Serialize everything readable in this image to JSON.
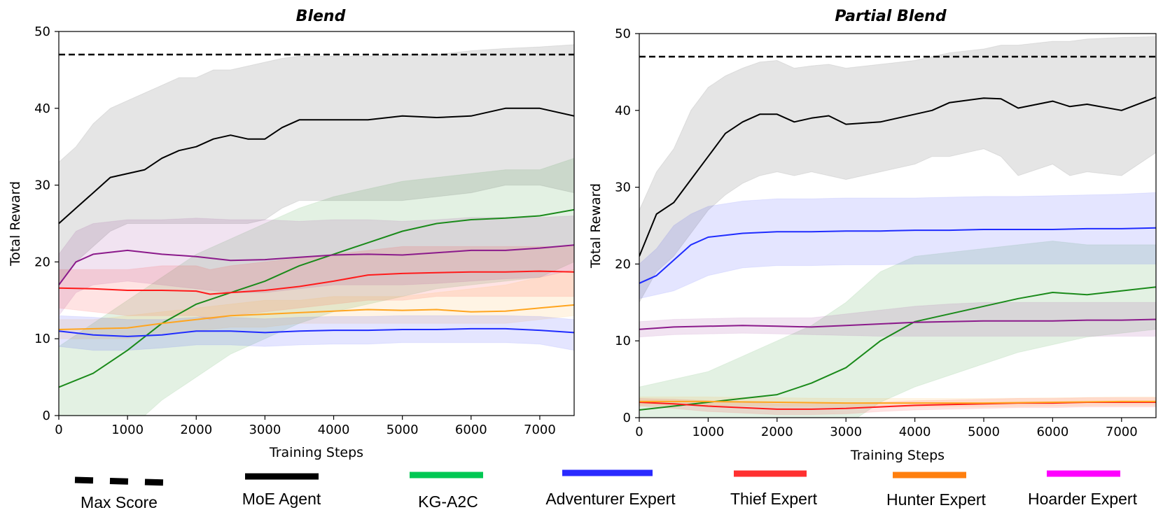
{
  "colors": {
    "max_score": "#000000",
    "moe_agent": "#000000",
    "kg_a2c": "#1a8a1a",
    "adventurer": "#1f2cff",
    "thief": "#ff1a1a",
    "hunter": "#ffa51f",
    "hoarder": "#8b1a8b"
  },
  "legend": {
    "items": [
      {
        "label": "Max Score",
        "color": "#000000",
        "style": "dashed"
      },
      {
        "label": "MoE Agent",
        "color": "#000000",
        "style": "solid"
      },
      {
        "label": "KG-A2C",
        "color": "#00c853",
        "style": "solid"
      },
      {
        "label": "Adventurer Expert",
        "color": "#2a2aff",
        "style": "solid"
      },
      {
        "label": "Thief Expert",
        "color": "#ff3030",
        "style": "solid"
      },
      {
        "label": "Hunter Expert",
        "color": "#ff7f0e",
        "style": "solid"
      },
      {
        "label": "Hoarder Expert",
        "color": "#ff00ff",
        "style": "solid"
      }
    ]
  },
  "chart_data": [
    {
      "type": "line",
      "title": "Blend",
      "xlabel": "Training Steps",
      "ylabel": "Total Reward",
      "xlim": [
        0,
        7500
      ],
      "ylim": [
        0,
        50
      ],
      "xticks": [
        0,
        1000,
        2000,
        3000,
        4000,
        5000,
        6000,
        7000
      ],
      "yticks": [
        0,
        10,
        20,
        30,
        40,
        50
      ],
      "max_score": 47,
      "series": [
        {
          "name": "KG-A2C",
          "key": "kg_a2c",
          "x": [
            0,
            500,
            1000,
            1500,
            2000,
            2500,
            3000,
            3500,
            4000,
            4500,
            5000,
            5500,
            6000,
            6500,
            7000,
            7500
          ],
          "mean": [
            3.7,
            5.5,
            8.5,
            12,
            14.5,
            16,
            17.5,
            19.5,
            21,
            22.5,
            24,
            25,
            25.5,
            25.7,
            26,
            26.8
          ],
          "lower": [
            -2,
            -3,
            -2,
            2,
            5,
            8,
            10,
            12,
            13.5,
            14.5,
            15.5,
            16.5,
            17,
            17.5,
            18,
            20
          ],
          "upper": [
            9,
            12,
            15,
            18,
            21,
            23,
            25,
            27,
            28.5,
            29.5,
            30.5,
            31,
            31.5,
            32,
            32,
            33.5
          ]
        },
        {
          "name": "Hoarder Expert",
          "key": "hoarder",
          "x": [
            0,
            250,
            500,
            1000,
            1500,
            2000,
            2500,
            3000,
            3500,
            4000,
            4500,
            5000,
            5500,
            6000,
            6500,
            7000,
            7500
          ],
          "mean": [
            17,
            20,
            21,
            21.5,
            21,
            20.7,
            20.2,
            20.3,
            20.6,
            20.9,
            21,
            20.9,
            21.2,
            21.5,
            21.5,
            21.8,
            22.2
          ],
          "lower": [
            13,
            16,
            17,
            17.5,
            17,
            16.5,
            16,
            16,
            16.5,
            17,
            17,
            17,
            17.2,
            17.5,
            17.8,
            18,
            19
          ],
          "upper": [
            21,
            24,
            25,
            25.5,
            25.5,
            25.7,
            25.5,
            25.5,
            25.3,
            25.5,
            25.5,
            25.3,
            25.5,
            25.8,
            25.8,
            25.8,
            26
          ]
        },
        {
          "name": "Thief Expert",
          "key": "thief",
          "x": [
            0,
            500,
            1000,
            1500,
            2000,
            2200,
            2500,
            3000,
            3500,
            4000,
            4500,
            5000,
            5500,
            6000,
            6500,
            7000,
            7500
          ],
          "mean": [
            16.6,
            16.5,
            16.3,
            16.3,
            16.2,
            15.8,
            16,
            16.3,
            16.8,
            17.5,
            18.3,
            18.5,
            18.6,
            18.7,
            18.7,
            18.8,
            18.7
          ],
          "lower": [
            14,
            13.5,
            13,
            13,
            13,
            12.5,
            13,
            13.5,
            14,
            14.5,
            15,
            15,
            15.5,
            15.5,
            15.5,
            15.5,
            15.5
          ],
          "upper": [
            19,
            19,
            19,
            19.5,
            19.5,
            19,
            19.5,
            20,
            20.5,
            21,
            21.5,
            22,
            22,
            22,
            22,
            22,
            22
          ]
        },
        {
          "name": "Hunter Expert",
          "key": "hunter",
          "x": [
            0,
            500,
            1000,
            1500,
            2000,
            2500,
            3000,
            3500,
            4000,
            4500,
            5000,
            5500,
            6000,
            6500,
            7000,
            7500
          ],
          "mean": [
            11.2,
            11.3,
            11.4,
            12,
            12.5,
            13,
            13.2,
            13.4,
            13.6,
            13.8,
            13.7,
            13.8,
            13.5,
            13.6,
            14,
            14.4
          ],
          "lower": [
            10,
            10,
            10,
            10.5,
            11,
            11.5,
            11.5,
            12,
            12,
            12,
            12,
            12,
            12,
            12,
            12.5,
            13
          ],
          "upper": [
            12.5,
            12.5,
            13,
            13.5,
            14,
            14.5,
            15,
            15,
            15.5,
            15.5,
            15.5,
            16,
            16.5,
            17,
            18,
            19
          ]
        },
        {
          "name": "Adventurer Expert",
          "key": "adventurer",
          "x": [
            0,
            500,
            1000,
            1500,
            2000,
            2500,
            3000,
            3500,
            4000,
            4500,
            5000,
            5500,
            6000,
            6500,
            7000,
            7500
          ],
          "mean": [
            11,
            10.5,
            10.3,
            10.5,
            11,
            11,
            10.8,
            11,
            11.1,
            11.1,
            11.2,
            11.2,
            11.3,
            11.3,
            11.1,
            10.8
          ],
          "lower": [
            9,
            8.5,
            8.5,
            8.8,
            9.2,
            9.2,
            9,
            9.2,
            9.3,
            9.3,
            9.5,
            9.5,
            9.5,
            9.5,
            9.3,
            8.5
          ],
          "upper": [
            13,
            12.8,
            12.5,
            12.5,
            12.8,
            12.8,
            12.6,
            12.8,
            12.9,
            12.9,
            13,
            13,
            13,
            13,
            12.9,
            12.5
          ]
        },
        {
          "name": "MoE Agent",
          "key": "moe_agent",
          "x": [
            0,
            250,
            500,
            750,
            1000,
            1250,
            1500,
            1750,
            2000,
            2250,
            2500,
            2750,
            3000,
            3250,
            3500,
            3750,
            4000,
            4500,
            5000,
            5500,
            6000,
            6500,
            7000,
            7500
          ],
          "mean": [
            25,
            27,
            29,
            31,
            31.5,
            32,
            33.5,
            34.5,
            35,
            36,
            36.5,
            36,
            36,
            37.5,
            38.5,
            38.5,
            38.5,
            38.5,
            39,
            38.8,
            39,
            40,
            40,
            39
          ],
          "lower": [
            17,
            20,
            22,
            24,
            25,
            25,
            25,
            25,
            25,
            25,
            25,
            25,
            25.5,
            27,
            28,
            28,
            28,
            28,
            28,
            28.5,
            29,
            30,
            30,
            29
          ],
          "upper": [
            33,
            35,
            38,
            40,
            41,
            42,
            43,
            44,
            44,
            45,
            45,
            45.5,
            46,
            46.5,
            46.8,
            46.8,
            46.8,
            46.8,
            47,
            47,
            47.5,
            47.8,
            48,
            48.3
          ]
        }
      ]
    },
    {
      "type": "line",
      "title": "Partial Blend",
      "xlabel": "Training Steps",
      "ylabel": "Total Reward",
      "xlim": [
        0,
        7500
      ],
      "ylim": [
        0,
        50
      ],
      "xticks": [
        0,
        1000,
        2000,
        3000,
        4000,
        5000,
        6000,
        7000
      ],
      "yticks": [
        0,
        10,
        20,
        30,
        40,
        50
      ],
      "max_score": 47,
      "series": [
        {
          "name": "KG-A2C",
          "key": "kg_a2c",
          "x": [
            0,
            500,
            1000,
            1500,
            2000,
            2500,
            3000,
            3500,
            4000,
            4500,
            5000,
            5500,
            6000,
            6500,
            7000,
            7500
          ],
          "mean": [
            1,
            1.5,
            2,
            2.5,
            3,
            4.5,
            6.5,
            10,
            12.5,
            13.5,
            14.5,
            15.5,
            16.3,
            16,
            16.5,
            17
          ],
          "lower": [
            -2,
            -2,
            -1.5,
            -1,
            -1,
            -1,
            -1,
            2,
            4,
            5.5,
            7,
            8.5,
            9.5,
            10.5,
            11,
            11.5
          ],
          "upper": [
            4,
            5,
            6,
            8,
            10,
            12,
            15,
            19,
            21,
            21.5,
            22,
            22.5,
            23,
            22.5,
            22.5,
            22.5
          ]
        },
        {
          "name": "Hoarder Expert",
          "key": "hoarder",
          "x": [
            0,
            500,
            1000,
            1500,
            2000,
            2500,
            3000,
            3500,
            4000,
            4500,
            5000,
            5500,
            6000,
            6500,
            7000,
            7500
          ],
          "mean": [
            11.5,
            11.8,
            11.9,
            12,
            11.9,
            11.8,
            12,
            12.2,
            12.4,
            12.5,
            12.6,
            12.6,
            12.6,
            12.7,
            12.7,
            12.8
          ],
          "lower": [
            10.5,
            10.8,
            10.9,
            11,
            10.9,
            10.8,
            10.7,
            10.6,
            10.6,
            10.6,
            10.6,
            10.6,
            10.6,
            10.6,
            10.6,
            10.6
          ],
          "upper": [
            12.5,
            12.8,
            12.9,
            13,
            13,
            13,
            13.5,
            14,
            14.5,
            14.8,
            15,
            15,
            15,
            15,
            15,
            15
          ]
        },
        {
          "name": "Adventurer Expert",
          "key": "adventurer",
          "x": [
            0,
            250,
            500,
            750,
            1000,
            1500,
            2000,
            2500,
            3000,
            3500,
            4000,
            4500,
            5000,
            5500,
            6000,
            6500,
            7000,
            7500
          ],
          "mean": [
            17.5,
            18.5,
            20.5,
            22.5,
            23.5,
            24,
            24.2,
            24.2,
            24.3,
            24.3,
            24.4,
            24.4,
            24.5,
            24.5,
            24.5,
            24.6,
            24.6,
            24.7
          ],
          "lower": [
            15.5,
            16,
            16.5,
            17.5,
            18.5,
            19.5,
            19.8,
            19.8,
            19.9,
            19.9,
            20,
            20,
            20,
            20,
            20,
            20,
            20,
            20
          ],
          "upper": [
            20,
            22,
            25,
            26.5,
            27.5,
            28.2,
            28.5,
            28.5,
            28.6,
            28.6,
            28.6,
            28.7,
            28.8,
            28.8,
            28.9,
            29,
            29.1,
            29.3
          ]
        },
        {
          "name": "Thief Expert",
          "key": "thief",
          "x": [
            0,
            500,
            1000,
            1500,
            2000,
            2500,
            3000,
            3500,
            4000,
            4500,
            5000,
            5500,
            6000,
            6500,
            7000,
            7500
          ],
          "mean": [
            2,
            1.8,
            1.5,
            1.3,
            1.1,
            1.1,
            1.2,
            1.4,
            1.6,
            1.7,
            1.8,
            1.9,
            1.9,
            2,
            2,
            2
          ],
          "lower": [
            1.5,
            1.2,
            0.8,
            0.6,
            0.4,
            0.4,
            0.5,
            0.8,
            1,
            1.1,
            1.2,
            1.3,
            1.3,
            1.4,
            1.4,
            1.4
          ],
          "upper": [
            2.5,
            2.4,
            2.2,
            2,
            1.8,
            1.8,
            1.9,
            2,
            2.2,
            2.3,
            2.4,
            2.5,
            2.5,
            2.6,
            2.6,
            2.6
          ]
        },
        {
          "name": "Hunter Expert",
          "key": "hunter",
          "x": [
            0,
            1000,
            2000,
            3000,
            4000,
            5000,
            6000,
            7000,
            7500
          ],
          "mean": [
            2.1,
            2.1,
            2,
            1.9,
            1.9,
            1.9,
            2,
            2.1,
            2.1
          ],
          "lower": [
            1.6,
            1.6,
            1.5,
            1.4,
            1.4,
            1.4,
            1.5,
            1.6,
            1.6
          ],
          "upper": [
            2.7,
            2.7,
            2.6,
            2.5,
            2.5,
            2.5,
            2.6,
            2.7,
            2.7
          ]
        },
        {
          "name": "MoE Agent",
          "key": "moe_agent",
          "x": [
            0,
            250,
            500,
            750,
            1000,
            1250,
            1500,
            1750,
            2000,
            2250,
            2500,
            2750,
            3000,
            3500,
            4000,
            4250,
            4500,
            5000,
            5250,
            5500,
            6000,
            6250,
            6500,
            7000,
            7500
          ],
          "mean": [
            21,
            26.5,
            28,
            31,
            34,
            37,
            38.5,
            39.5,
            39.5,
            38.5,
            39,
            39.3,
            38.2,
            38.5,
            39.5,
            40,
            41,
            41.6,
            41.5,
            40.3,
            41.2,
            40.5,
            40.8,
            40,
            41.7
          ],
          "lower": [
            15,
            19,
            21,
            24,
            27,
            29,
            30.5,
            31.5,
            32,
            31.5,
            32,
            31.5,
            31,
            32,
            33,
            34,
            34,
            35,
            34,
            31.5,
            33,
            31.5,
            32,
            31.5,
            34.5
          ],
          "upper": [
            27,
            32,
            35,
            40,
            43,
            44.5,
            45.5,
            46.3,
            46.5,
            45.5,
            45.8,
            46,
            45.5,
            46,
            46.5,
            47,
            47.5,
            48,
            48.5,
            48.5,
            49,
            49,
            49.3,
            49.5,
            49.6
          ]
        }
      ]
    }
  ]
}
